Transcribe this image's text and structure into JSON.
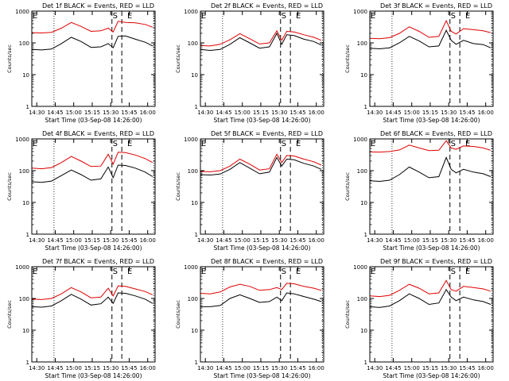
{
  "colors": {
    "events": "#000000",
    "lld": "#e00000",
    "axis": "#000000",
    "background": "#ffffff"
  },
  "shared": {
    "xlabel": "Start Time (03-Sep-08 14:26:00)",
    "ylabel": "Counts/sec",
    "x_ticks": [
      "14:30",
      "14:45",
      "15:00",
      "15:15",
      "15:30",
      "15:45",
      "16:00"
    ],
    "y_ticks": [
      "1",
      "10",
      "100",
      "1000"
    ],
    "scale": "log",
    "xlim": [
      "14:26",
      "16:06"
    ],
    "ylim": [
      1,
      1000
    ],
    "marker_labels": [
      "E",
      "S",
      "E"
    ]
  },
  "chart_data": [
    {
      "type": "line",
      "title": "Det 1f BLACK = Events, RED = LLD",
      "x": [
        "14:26",
        "14:34",
        "14:42",
        "14:50",
        "14:58",
        "15:06",
        "15:14",
        "15:22",
        "15:28",
        "15:32",
        "15:36",
        "15:42",
        "15:50",
        "15:58",
        "16:04"
      ],
      "series": [
        {
          "values": [
            62,
            60,
            64,
            95,
            150,
            110,
            72,
            75,
            95,
            70,
            160,
            165,
            130,
            105,
            80
          ]
        },
        {
          "values": [
            210,
            205,
            215,
            290,
            440,
            330,
            230,
            240,
            290,
            220,
            480,
            440,
            430,
            380,
            310
          ]
        }
      ]
    },
    {
      "type": "line",
      "title": "Det 2f BLACK = Events, RED = LLD",
      "x": [
        "14:26",
        "14:34",
        "14:42",
        "14:50",
        "14:58",
        "15:06",
        "15:14",
        "15:22",
        "15:28",
        "15:32",
        "15:36",
        "15:42",
        "15:50",
        "15:58",
        "16:04"
      ],
      "series": [
        {
          "values": [
            62,
            58,
            62,
            90,
            145,
            100,
            68,
            75,
            200,
            90,
            180,
            170,
            130,
            110,
            85
          ]
        },
        {
          "values": [
            82,
            80,
            90,
            125,
            195,
            135,
            92,
            100,
            240,
            120,
            230,
            220,
            180,
            150,
            120
          ]
        }
      ]
    },
    {
      "type": "line",
      "title": "Det 3f BLACK = Events, RED = LLD",
      "x": [
        "14:26",
        "14:34",
        "14:42",
        "14:50",
        "14:58",
        "15:06",
        "15:14",
        "15:22",
        "15:28",
        "15:32",
        "15:36",
        "15:42",
        "15:50",
        "15:58",
        "16:04"
      ],
      "series": [
        {
          "values": [
            68,
            65,
            70,
            100,
            160,
            115,
            75,
            80,
            250,
            120,
            90,
            120,
            95,
            88,
            70
          ]
        },
        {
          "values": [
            140,
            135,
            145,
            200,
            320,
            230,
            150,
            160,
            500,
            230,
            190,
            280,
            260,
            240,
            210
          ]
        }
      ]
    },
    {
      "type": "line",
      "title": "Det 4f BLACK = Events, RED = LLD",
      "x": [
        "14:26",
        "14:34",
        "14:42",
        "14:50",
        "14:58",
        "15:06",
        "15:14",
        "15:22",
        "15:28",
        "15:32",
        "15:36",
        "15:42",
        "15:50",
        "15:58",
        "16:04"
      ],
      "series": [
        {
          "values": [
            45,
            43,
            47,
            70,
            105,
            75,
            50,
            55,
            130,
            60,
            150,
            145,
            120,
            90,
            65
          ]
        },
        {
          "values": [
            120,
            115,
            125,
            180,
            280,
            200,
            135,
            140,
            330,
            160,
            380,
            370,
            310,
            240,
            180
          ]
        }
      ]
    },
    {
      "type": "line",
      "title": "Det 5f BLACK = Events, RED = LLD",
      "x": [
        "14:26",
        "14:34",
        "14:42",
        "14:50",
        "14:58",
        "15:06",
        "15:14",
        "15:22",
        "15:28",
        "15:32",
        "15:36",
        "15:42",
        "15:50",
        "15:58",
        "16:04"
      ],
      "series": [
        {
          "values": [
            75,
            73,
            78,
            110,
            180,
            120,
            80,
            90,
            260,
            140,
            230,
            220,
            170,
            140,
            110
          ]
        },
        {
          "values": [
            95,
            92,
            100,
            140,
            230,
            160,
            105,
            115,
            330,
            180,
            300,
            290,
            230,
            190,
            150
          ]
        }
      ]
    },
    {
      "type": "line",
      "title": "Det 6f BLACK = Events, RED = LLD",
      "x": [
        "14:26",
        "14:34",
        "14:42",
        "14:50",
        "14:58",
        "15:06",
        "15:14",
        "15:22",
        "15:28",
        "15:32",
        "15:36",
        "15:42",
        "15:50",
        "15:58",
        "16:04"
      ],
      "series": [
        {
          "values": [
            48,
            46,
            50,
            75,
            130,
            90,
            60,
            65,
            260,
            110,
            85,
            110,
            90,
            80,
            65
          ]
        },
        {
          "values": [
            390,
            385,
            400,
            450,
            640,
            520,
            430,
            440,
            880,
            520,
            470,
            600,
            580,
            520,
            440
          ]
        }
      ]
    },
    {
      "type": "line",
      "title": "Det 7f BLACK = Events, RED = LLD",
      "x": [
        "14:26",
        "14:34",
        "14:42",
        "14:50",
        "14:58",
        "15:06",
        "15:14",
        "15:22",
        "15:28",
        "15:32",
        "15:36",
        "15:42",
        "15:50",
        "15:58",
        "16:04"
      ],
      "series": [
        {
          "values": [
            55,
            53,
            58,
            85,
            135,
            95,
            62,
            68,
            110,
            70,
            150,
            145,
            120,
            95,
            70
          ]
        },
        {
          "values": [
            95,
            92,
            100,
            140,
            220,
            160,
            105,
            110,
            210,
            120,
            250,
            240,
            200,
            165,
            130
          ]
        }
      ]
    },
    {
      "type": "line",
      "title": "Det 8f BLACK = Events, RED = LLD",
      "x": [
        "14:26",
        "14:34",
        "14:42",
        "14:50",
        "14:58",
        "15:06",
        "15:14",
        "15:22",
        "15:28",
        "15:32",
        "15:36",
        "15:42",
        "15:50",
        "15:58",
        "16:04"
      ],
      "series": [
        {
          "values": [
            55,
            55,
            60,
            100,
            130,
            100,
            75,
            80,
            110,
            85,
            150,
            140,
            115,
            95,
            80
          ]
        },
        {
          "values": [
            145,
            140,
            160,
            230,
            280,
            240,
            180,
            190,
            220,
            190,
            300,
            290,
            240,
            210,
            180
          ]
        }
      ]
    },
    {
      "type": "line",
      "title": "Det 9f BLACK = Events, RED = LLD",
      "x": [
        "14:26",
        "14:34",
        "14:42",
        "14:50",
        "14:58",
        "15:06",
        "15:14",
        "15:22",
        "15:28",
        "15:32",
        "15:36",
        "15:42",
        "15:50",
        "15:58",
        "16:04"
      ],
      "series": [
        {
          "values": [
            55,
            52,
            58,
            85,
            140,
            100,
            65,
            72,
            190,
            110,
            85,
            110,
            90,
            80,
            65
          ]
        },
        {
          "values": [
            120,
            115,
            125,
            180,
            280,
            210,
            140,
            150,
            370,
            190,
            170,
            240,
            220,
            200,
            170
          ]
        }
      ]
    }
  ]
}
